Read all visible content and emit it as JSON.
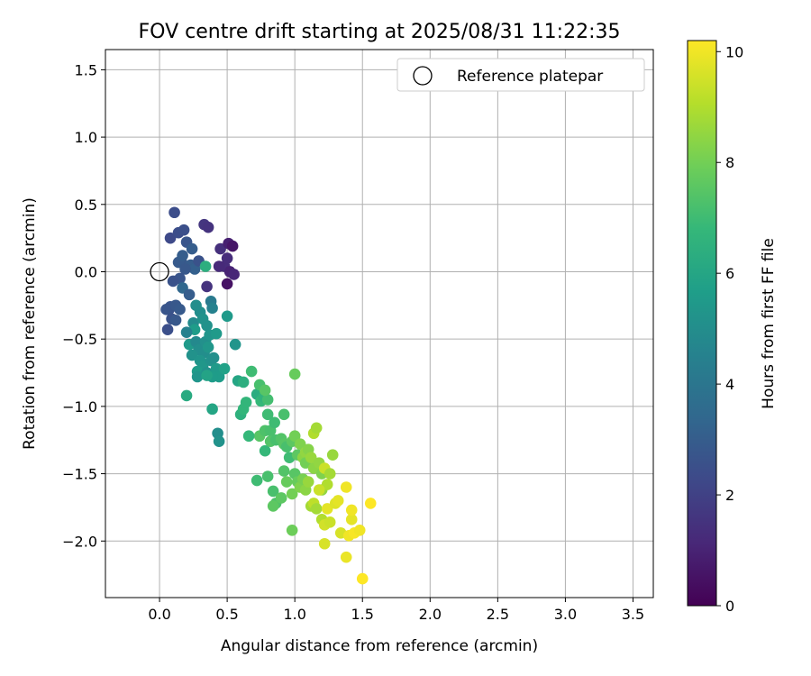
{
  "chart_data": {
    "type": "scatter",
    "title": "FOV centre drift starting at 2025/08/31 11:22:35",
    "xlabel": "Angular distance from reference (arcmin)",
    "ylabel": "Rotation from reference (arcmin)",
    "xlim": [
      -0.4,
      3.65
    ],
    "ylim": [
      -2.42,
      1.65
    ],
    "xticks": [
      0.0,
      0.5,
      1.0,
      1.5,
      2.0,
      2.5,
      3.0,
      3.5
    ],
    "xtick_labels": [
      "0.0",
      "0.5",
      "1.0",
      "1.5",
      "2.0",
      "2.5",
      "3.0",
      "3.5"
    ],
    "yticks": [
      -2.0,
      -1.5,
      -1.0,
      -0.5,
      0.0,
      0.5,
      1.0,
      1.5
    ],
    "ytick_labels": [
      "−2.0",
      "−1.5",
      "−1.0",
      "−0.5",
      "0.0",
      "0.5",
      "1.0",
      "1.5"
    ],
    "grid": true,
    "legend": {
      "placement": "top-right",
      "entries": [
        "Reference platepar"
      ]
    },
    "reference_point": {
      "x": 0.0,
      "y": 0.0
    },
    "colorbar": {
      "label": "Hours from first FF file",
      "range": [
        0,
        10.2
      ],
      "ticks": [
        0,
        2,
        4,
        6,
        8,
        10
      ],
      "tick_labels": [
        "0",
        "2",
        "4",
        "6",
        "8",
        "10"
      ],
      "colormap": "viridis"
    },
    "colormap_stops": [
      "#440154",
      "#482878",
      "#3e4989",
      "#31688e",
      "#26828e",
      "#1f9e89",
      "#35b779",
      "#6ece58",
      "#b5de2b",
      "#fde725"
    ],
    "points": [
      [
        0.11,
        0.44,
        2.4
      ],
      [
        0.08,
        0.25,
        2.3
      ],
      [
        0.14,
        0.29,
        2.4
      ],
      [
        0.18,
        0.31,
        2.5
      ],
      [
        0.2,
        0.22,
        2.7
      ],
      [
        0.16,
        0.08,
        2.8
      ],
      [
        0.14,
        0.07,
        2.9
      ],
      [
        0.17,
        0.12,
        3.0
      ],
      [
        0.23,
        0.05,
        3.0
      ],
      [
        0.26,
        0.02,
        3.1
      ],
      [
        0.24,
        0.17,
        3.0
      ],
      [
        0.29,
        0.08,
        2.6
      ],
      [
        0.19,
        0.02,
        2.8
      ],
      [
        0.15,
        -0.05,
        2.7
      ],
      [
        0.1,
        -0.07,
        2.6
      ],
      [
        0.17,
        -0.12,
        3.4
      ],
      [
        0.08,
        -0.26,
        2.7
      ],
      [
        0.07,
        -0.28,
        2.6
      ],
      [
        0.05,
        -0.28,
        2.7
      ],
      [
        0.12,
        -0.25,
        2.8
      ],
      [
        0.09,
        -0.35,
        2.6
      ],
      [
        0.06,
        -0.43,
        2.5
      ],
      [
        0.12,
        -0.36,
        2.8
      ],
      [
        0.15,
        -0.28,
        2.9
      ],
      [
        0.22,
        -0.17,
        3.0
      ],
      [
        0.27,
        -0.25,
        5.0
      ],
      [
        0.25,
        -0.38,
        4.9
      ],
      [
        0.3,
        -0.3,
        5.0
      ],
      [
        0.32,
        -0.35,
        5.2
      ],
      [
        0.38,
        -0.22,
        4.2
      ],
      [
        0.39,
        -0.27,
        4.5
      ],
      [
        0.35,
        -0.4,
        5.2
      ],
      [
        0.26,
        -0.43,
        5.6
      ],
      [
        0.2,
        -0.45,
        4.5
      ],
      [
        0.22,
        -0.54,
        5.5
      ],
      [
        0.27,
        -0.52,
        4.8
      ],
      [
        0.29,
        -0.58,
        5.0
      ],
      [
        0.24,
        -0.62,
        5.2
      ],
      [
        0.33,
        -0.6,
        5.0
      ],
      [
        0.3,
        -0.66,
        5.3
      ],
      [
        0.34,
        -0.52,
        5.1
      ],
      [
        0.37,
        -0.47,
        5.3
      ],
      [
        0.42,
        -0.46,
        5.5
      ],
      [
        0.36,
        -0.56,
        5.4
      ],
      [
        0.32,
        -0.7,
        5.4
      ],
      [
        0.28,
        -0.74,
        5.6
      ],
      [
        0.28,
        -0.78,
        5.3
      ],
      [
        0.35,
        -0.75,
        5.2
      ],
      [
        0.38,
        -0.66,
        5.2
      ],
      [
        0.4,
        -0.64,
        5.1
      ],
      [
        0.42,
        -0.72,
        5.5
      ],
      [
        0.44,
        -0.78,
        5.6
      ],
      [
        0.39,
        -0.78,
        5.6
      ],
      [
        0.35,
        -0.77,
        5.9
      ],
      [
        0.48,
        -0.72,
        5.8
      ],
      [
        0.2,
        -0.92,
        6.2
      ],
      [
        0.39,
        -1.02,
        6.0
      ],
      [
        0.43,
        -1.2,
        5.0
      ],
      [
        0.44,
        -1.26,
        5.2
      ],
      [
        0.56,
        -0.54,
        5.3
      ],
      [
        0.5,
        -0.33,
        5.5
      ],
      [
        0.34,
        0.04,
        6.4
      ],
      [
        0.58,
        -0.81,
        6.0
      ],
      [
        0.62,
        -0.82,
        6.4
      ],
      [
        0.6,
        -1.06,
        6.5
      ],
      [
        0.62,
        -1.02,
        6.7
      ],
      [
        0.64,
        -0.97,
        6.7
      ],
      [
        0.68,
        -0.74,
        7.0
      ],
      [
        0.72,
        -0.91,
        6.3
      ],
      [
        0.74,
        -0.84,
        7.2
      ],
      [
        0.75,
        -0.96,
        6.8
      ],
      [
        0.77,
        -0.93,
        6.6
      ],
      [
        0.8,
        -0.95,
        7.1
      ],
      [
        0.78,
        -0.88,
        7.5
      ],
      [
        0.74,
        -1.22,
        7.5
      ],
      [
        0.66,
        -1.22,
        6.8
      ],
      [
        0.78,
        -1.18,
        7.3
      ],
      [
        0.78,
        -1.33,
        6.8
      ],
      [
        0.8,
        -1.06,
        7.0
      ],
      [
        0.82,
        -1.18,
        7.2
      ],
      [
        0.82,
        -1.26,
        7.4
      ],
      [
        0.85,
        -1.12,
        7.0
      ],
      [
        0.86,
        -1.25,
        7.2
      ],
      [
        0.9,
        -1.24,
        7.4
      ],
      [
        0.92,
        -1.06,
        7.2
      ],
      [
        0.92,
        -1.28,
        7.5
      ],
      [
        0.94,
        -1.3,
        7.2
      ],
      [
        0.96,
        -1.38,
        7.0
      ],
      [
        0.98,
        -1.26,
        7.6
      ],
      [
        1.0,
        -1.22,
        8.0
      ],
      [
        1.02,
        -1.36,
        7.6
      ],
      [
        1.04,
        -1.28,
        8.2
      ],
      [
        1.06,
        -1.38,
        8.4
      ],
      [
        1.08,
        -1.34,
        8.5
      ],
      [
        1.08,
        -1.42,
        8.0
      ],
      [
        1.1,
        -1.32,
        8.3
      ],
      [
        1.12,
        -1.38,
        8.6
      ],
      [
        1.14,
        -1.46,
        8.4
      ],
      [
        1.14,
        -1.2,
        9.0
      ],
      [
        1.16,
        -1.16,
        8.8
      ],
      [
        1.18,
        -1.42,
        8.5
      ],
      [
        1.2,
        -1.5,
        8.2
      ],
      [
        1.22,
        -1.46,
        9.4
      ],
      [
        1.2,
        -1.62,
        8.5
      ],
      [
        1.24,
        -1.58,
        9.0
      ],
      [
        1.26,
        -1.5,
        8.8
      ],
      [
        1.28,
        -1.36,
        8.6
      ],
      [
        1.0,
        -0.76,
        7.8
      ],
      [
        0.72,
        -1.55,
        7.0
      ],
      [
        0.8,
        -1.52,
        7.2
      ],
      [
        0.84,
        -1.63,
        7.2
      ],
      [
        0.86,
        -1.72,
        7.3
      ],
      [
        0.84,
        -1.74,
        7.6
      ],
      [
        0.9,
        -1.68,
        7.6
      ],
      [
        0.92,
        -1.48,
        7.4
      ],
      [
        0.94,
        -1.56,
        7.8
      ],
      [
        0.98,
        -1.65,
        8.0
      ],
      [
        1.0,
        -1.5,
        7.5
      ],
      [
        1.02,
        -1.56,
        7.8
      ],
      [
        1.04,
        -1.6,
        8.2
      ],
      [
        1.06,
        -1.54,
        8.1
      ],
      [
        1.08,
        -1.62,
        8.4
      ],
      [
        1.1,
        -1.56,
        8.6
      ],
      [
        1.12,
        -1.74,
        8.8
      ],
      [
        1.14,
        -1.72,
        9.2
      ],
      [
        1.16,
        -1.76,
        8.8
      ],
      [
        1.18,
        -1.62,
        9.4
      ],
      [
        1.2,
        -1.84,
        9.0
      ],
      [
        1.22,
        -1.88,
        9.5
      ],
      [
        1.24,
        -1.76,
        9.8
      ],
      [
        1.26,
        -1.86,
        9.4
      ],
      [
        1.3,
        -1.72,
        9.7
      ],
      [
        1.32,
        -1.7,
        9.8
      ],
      [
        1.34,
        -1.94,
        9.6
      ],
      [
        1.38,
        -1.6,
        10.0
      ],
      [
        1.4,
        -1.96,
        10.0
      ],
      [
        1.42,
        -1.84,
        9.8
      ],
      [
        1.42,
        -1.77,
        10.0
      ],
      [
        1.44,
        -1.94,
        10.1
      ],
      [
        1.48,
        -1.92,
        10.0
      ],
      [
        1.56,
        -1.72,
        10.2
      ],
      [
        1.5,
        -2.28,
        10.2
      ],
      [
        1.38,
        -2.12,
        9.9
      ],
      [
        1.22,
        -2.02,
        9.6
      ],
      [
        0.98,
        -1.92,
        7.9
      ],
      [
        0.33,
        0.35,
        1.6
      ],
      [
        0.36,
        0.33,
        1.5
      ],
      [
        0.45,
        0.17,
        1.4
      ],
      [
        0.48,
        0.04,
        1.3
      ],
      [
        0.5,
        0.1,
        1.3
      ],
      [
        0.51,
        0.21,
        0.9
      ],
      [
        0.54,
        0.19,
        0.6
      ],
      [
        0.52,
        0.0,
        1.0
      ],
      [
        0.55,
        -0.02,
        1.1
      ],
      [
        0.5,
        -0.09,
        0.5
      ],
      [
        0.35,
        -0.11,
        1.5
      ],
      [
        0.44,
        0.04,
        1.2
      ]
    ]
  }
}
